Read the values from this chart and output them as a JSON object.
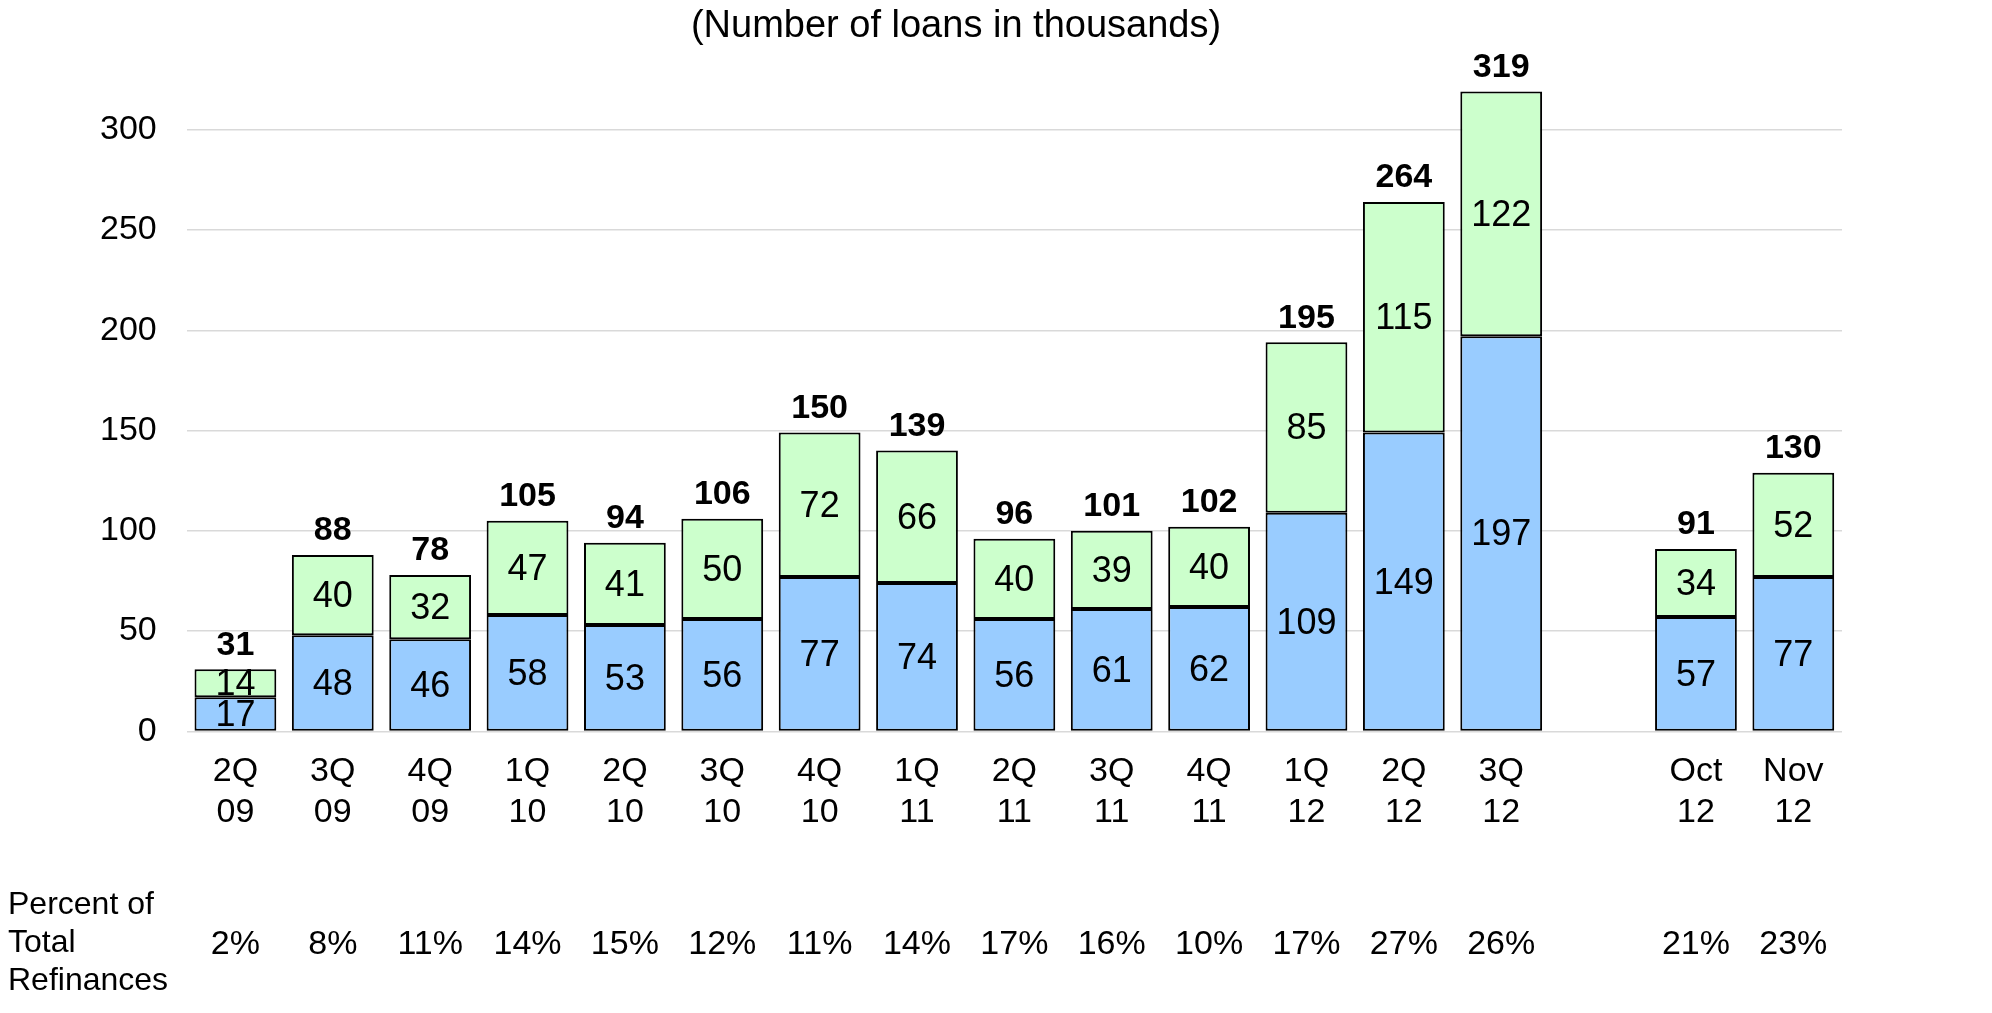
{
  "chart_data": {
    "type": "bar",
    "stacked": true,
    "subtitle": "(Number of loans in thousands)",
    "categories": [
      "2Q 09",
      "3Q 09",
      "4Q 09",
      "1Q 10",
      "2Q 10",
      "3Q 10",
      "4Q 10",
      "1Q 11",
      "2Q 11",
      "3Q 11",
      "4Q 11",
      "1Q 12",
      "2Q 12",
      "3Q 12",
      null,
      "Oct 12",
      "Nov 12"
    ],
    "series": [
      {
        "color": "#99ccff",
        "values": [
          17,
          48,
          46,
          58,
          53,
          56,
          77,
          74,
          56,
          61,
          62,
          109,
          149,
          197,
          null,
          57,
          77
        ]
      },
      {
        "color": "#ccffcc",
        "values": [
          14,
          40,
          32,
          47,
          41,
          50,
          72,
          66,
          40,
          39,
          40,
          85,
          115,
          122,
          null,
          34,
          52
        ]
      }
    ],
    "totals": [
      "31",
      "88",
      "78",
      "105",
      "94",
      "106",
      "150",
      "139",
      "96",
      "101",
      "102",
      "195",
      "264",
      "319",
      null,
      "91",
      "130"
    ],
    "data_labels": true,
    "ylim": [
      0,
      320
    ],
    "yticks": [
      0,
      50,
      100,
      150,
      200,
      250,
      300
    ],
    "grid": "y",
    "legend": false,
    "annotations": [
      "Percent of Total Refinances",
      "2%",
      "8%",
      "11%",
      "14%",
      "15%",
      "12%",
      "11%",
      "14%",
      "17%",
      "16%",
      "10%",
      "17%",
      "27%",
      "26%",
      "21%",
      "23%"
    ]
  }
}
